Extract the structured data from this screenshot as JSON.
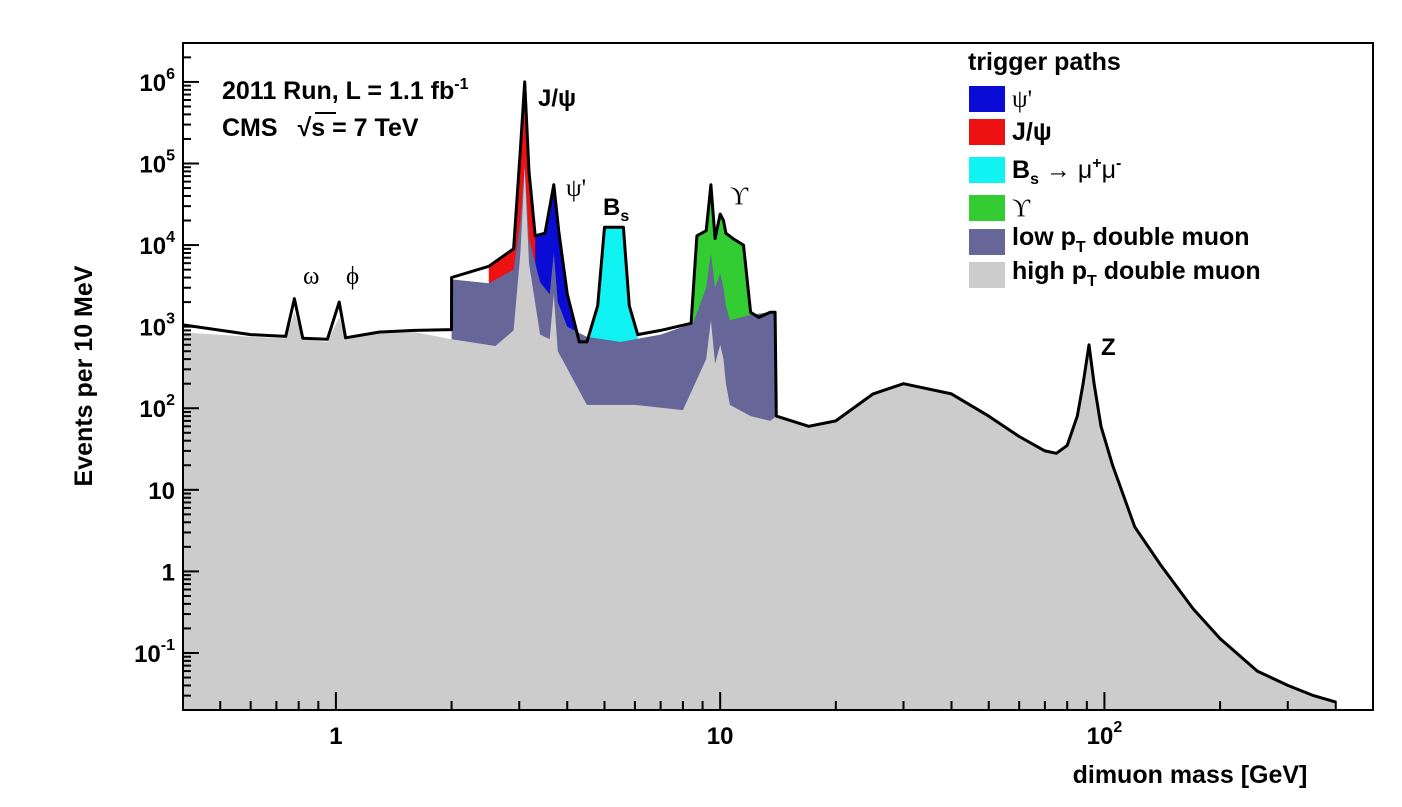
{
  "chart_data": {
    "type": "area",
    "title": "",
    "xlabel": "dimuon mass [GeV]",
    "ylabel": "Events per 10 MeV",
    "xscale": "log",
    "yscale": "log",
    "xlim": [
      0.4,
      500
    ],
    "ylim": [
      0.02,
      3000000
    ],
    "x_ticks": [
      {
        "value": 1,
        "label": "1"
      },
      {
        "value": 10,
        "label": "10"
      },
      {
        "value": 100,
        "label": "10",
        "exp": "2"
      }
    ],
    "y_ticks": [
      {
        "value": 0.1,
        "base": "10",
        "exp": "-1"
      },
      {
        "value": 1,
        "base": "1",
        "exp": ""
      },
      {
        "value": 10,
        "base": "10",
        "exp": ""
      },
      {
        "value": 100,
        "base": "10",
        "exp": "2"
      },
      {
        "value": 1000,
        "base": "10",
        "exp": "3"
      },
      {
        "value": 10000,
        "base": "10",
        "exp": "4"
      },
      {
        "value": 100000,
        "base": "10",
        "exp": "5"
      },
      {
        "value": 1000000,
        "base": "10",
        "exp": "6"
      }
    ],
    "annotations": {
      "run_line1_main": "2011 Run, L = 1.1 fb",
      "run_line1_exp": "-1",
      "run_line2_cms": "CMS",
      "run_line2_sqrt": "√s = 7 TeV",
      "peaks": [
        {
          "label": "ω",
          "x": 0.78,
          "y": 3800
        },
        {
          "label": "ϕ",
          "x": 1.02,
          "y": 3800
        },
        {
          "label": "J/ψ",
          "x": 3.1,
          "y": 900000
        },
        {
          "label": "ψ'",
          "x": 3.69,
          "y": 50000
        },
        {
          "label": "B",
          "sub": "s",
          "x": 5.37,
          "y": 24000
        },
        {
          "label": "ϒ",
          "x": 9.46,
          "y": 55000
        },
        {
          "label": "Z",
          "x": 91.2,
          "y": 700
        }
      ]
    },
    "legend": {
      "placement": "top-right",
      "title": "trigger paths",
      "entries": [
        {
          "label": "ψ'",
          "color": "#0b0bd6"
        },
        {
          "label": "J/ψ",
          "color": "#ee1111"
        },
        {
          "label": "B",
          "sub": "s",
          "arrow": " → μ",
          "sup1": "+",
          "mid": "μ",
          "sup2": "-",
          "color": "#11f2f2"
        },
        {
          "label": "ϒ",
          "color": "#33cc33"
        },
        {
          "label": "low p",
          "sub": "T",
          "tail": " double muon",
          "color": "#666699"
        },
        {
          "label": "high p",
          "sub": "T",
          "tail": " double muon",
          "color": "#cccccc"
        }
      ]
    },
    "series": [
      {
        "name": "high pT double muon",
        "color": "#cccccc",
        "x": [
          0.4,
          0.6,
          0.74,
          0.78,
          0.82,
          0.95,
          1.02,
          1.06,
          1.3,
          1.6,
          2.0,
          2.6,
          2.9,
          3.02,
          3.1,
          3.18,
          3.4,
          3.6,
          3.69,
          3.78,
          4.5,
          6,
          8,
          9.2,
          9.46,
          9.7,
          10.0,
          10.2,
          10.35,
          10.6,
          12,
          13.5,
          14,
          17,
          20,
          25,
          30,
          40,
          50,
          60,
          70,
          75,
          80,
          85,
          88,
          91.2,
          94,
          98,
          105,
          120,
          140,
          170,
          200,
          250,
          300,
          350,
          400
        ],
        "values": [
          850,
          750,
          720,
          1500,
          700,
          650,
          1300,
          700,
          830,
          860,
          700,
          580,
          900,
          8000,
          90000,
          6000,
          800,
          700,
          2500,
          500,
          110,
          110,
          95,
          400,
          1200,
          350,
          600,
          400,
          200,
          110,
          80,
          70,
          80,
          60,
          70,
          150,
          200,
          150,
          80,
          45,
          30,
          28,
          35,
          80,
          200,
          600,
          200,
          60,
          20,
          3.5,
          1.2,
          0.35,
          0.15,
          0.06,
          0.04,
          0.03,
          0.025
        ]
      },
      {
        "name": "low pT double muon",
        "color": "#666699",
        "x": [
          2.0,
          2.5,
          2.9,
          3.02,
          3.1,
          3.18,
          3.4,
          3.6,
          3.69,
          3.78,
          4.0,
          4.5,
          5.5,
          7,
          8.5,
          9.2,
          9.46,
          9.7,
          10.0,
          10.2,
          10.35,
          10.6,
          12,
          13.5,
          13.9
        ],
        "values": [
          3800,
          3400,
          5000,
          20000,
          100000,
          12000,
          3500,
          2500,
          8000,
          2000,
          1000,
          750,
          650,
          800,
          1100,
          3000,
          8000,
          3000,
          4500,
          3000,
          1800,
          1200,
          1400,
          1500,
          1500
        ]
      },
      {
        "name": "J/ψ",
        "color": "#ee1111",
        "x": [
          2.5,
          2.9,
          3.02,
          3.1,
          3.18,
          3.4,
          3.6,
          3.69,
          3.78,
          4.0,
          4.3
        ],
        "values": [
          5500,
          9000,
          150000,
          1000000,
          80000,
          5000,
          3500,
          13000,
          3000,
          1200,
          650
        ]
      },
      {
        "name": "ψ'",
        "color": "#0b0bd6",
        "x": [
          3.3,
          3.5,
          3.69,
          3.8,
          4.0,
          4.3
        ],
        "values": [
          13000,
          14000,
          55000,
          15000,
          2500,
          650
        ]
      },
      {
        "name": "Bs → μ+μ-",
        "color": "#11f2f2",
        "x": [
          4.5,
          4.8,
          5.0,
          5.6,
          5.8,
          6.1
        ],
        "values": [
          650,
          1800,
          16500,
          16500,
          1800,
          800
        ]
      },
      {
        "name": "ϒ",
        "color": "#33cc33",
        "x": [
          8.4,
          8.7,
          9.2,
          9.46,
          9.7,
          10.0,
          10.2,
          10.35,
          10.8,
          11.5,
          12,
          12.6
        ],
        "values": [
          1100,
          13000,
          15000,
          55000,
          12000,
          24000,
          20000,
          14000,
          12000,
          10000,
          1500,
          1300
        ]
      },
      {
        "name": "total",
        "color": "#000000",
        "x": [
          0.4,
          0.6,
          0.74,
          0.78,
          0.82,
          0.95,
          1.02,
          1.06,
          1.3,
          1.6,
          1.999,
          2.0,
          2.5,
          2.9,
          3.02,
          3.1,
          3.18,
          3.3,
          3.5,
          3.69,
          3.8,
          4.0,
          4.3,
          4.5,
          4.8,
          5.0,
          5.6,
          5.8,
          6.1,
          7.0,
          8.4,
          8.7,
          9.2,
          9.46,
          9.7,
          10.0,
          10.2,
          10.35,
          10.8,
          11.5,
          12,
          12.6,
          13.5,
          13.9,
          14.0,
          17,
          20,
          25,
          30,
          40,
          50,
          60,
          70,
          75,
          80,
          85,
          88,
          91.2,
          94,
          98,
          105,
          120,
          140,
          170,
          200,
          250,
          300,
          350,
          400
        ],
        "values": [
          1050,
          800,
          760,
          2200,
          720,
          700,
          2000,
          730,
          860,
          900,
          920,
          4000,
          5500,
          9000,
          150000,
          1000000,
          80000,
          13000,
          14000,
          55000,
          15000,
          2500,
          650,
          650,
          1800,
          16500,
          16500,
          1800,
          800,
          900,
          1100,
          13000,
          15000,
          55000,
          12000,
          24000,
          20000,
          14000,
          12000,
          10000,
          1500,
          1300,
          1500,
          1500,
          80,
          60,
          70,
          150,
          200,
          150,
          80,
          45,
          30,
          28,
          35,
          80,
          200,
          600,
          200,
          60,
          20,
          3.5,
          1.2,
          0.35,
          0.15,
          0.06,
          0.04,
          0.03,
          0.025
        ]
      }
    ]
  }
}
